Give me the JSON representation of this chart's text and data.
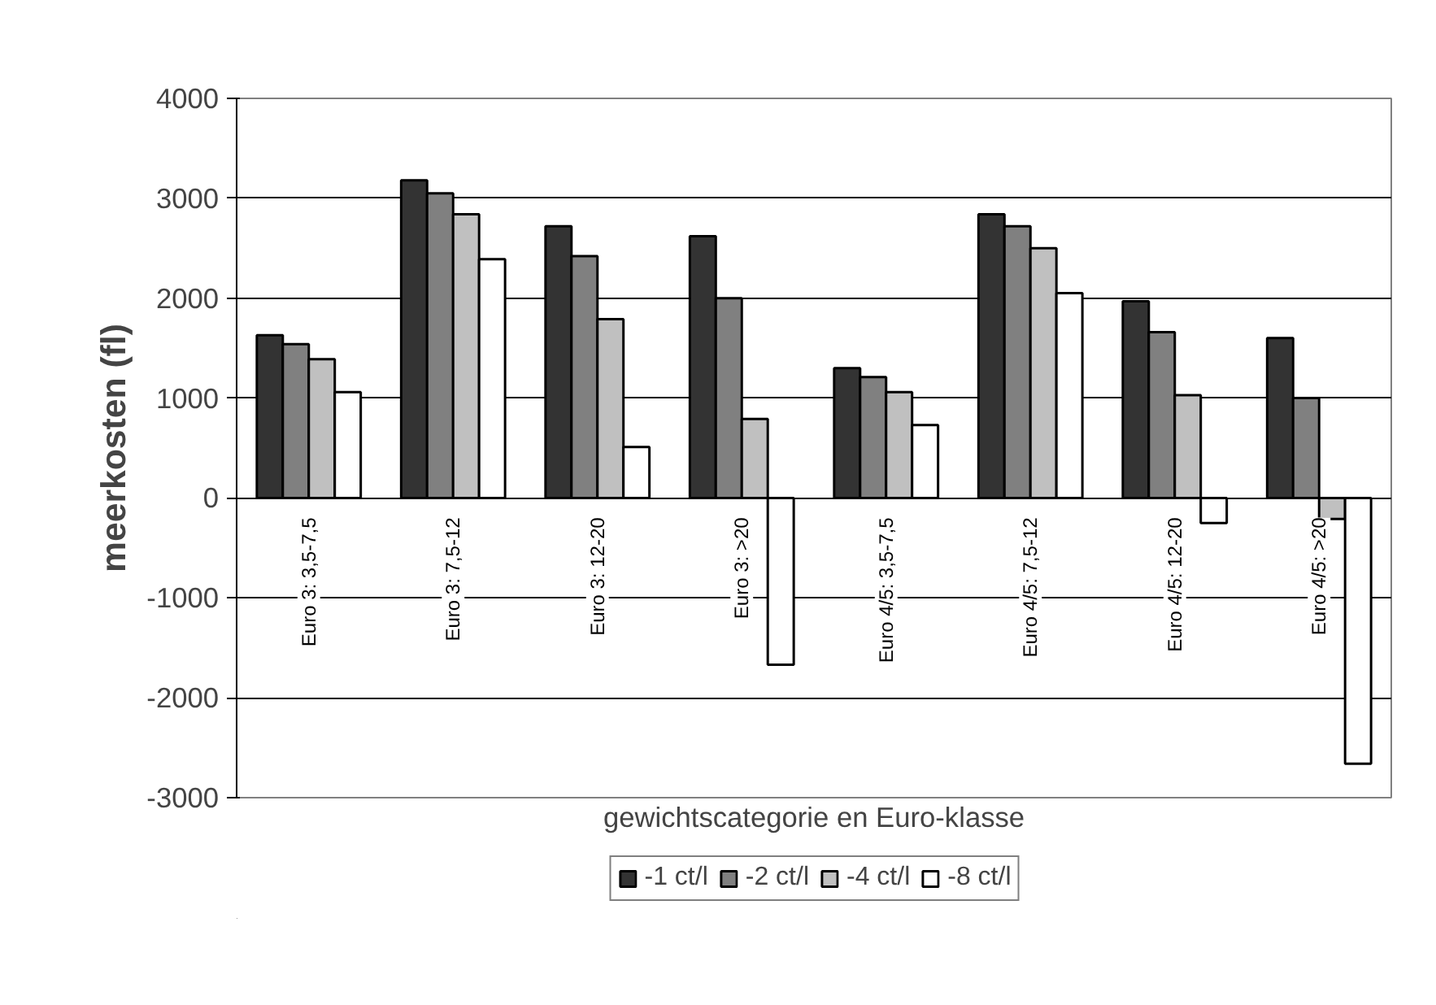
{
  "chart_data": {
    "type": "bar",
    "ylabel": "meerkosten (fl)",
    "xlabel": "gewichtscategorie en Euro-klasse",
    "categories": [
      "Euro 3: 3,5-7,5",
      "Euro 3: 7,5-12",
      "Euro 3: 12-20",
      "Euro 3: >20",
      "Euro 4/5: 3,5-7,5",
      "Euro 4/5: 7,5-12",
      "Euro 4/5: 12-20",
      "Euro 4/5: >20"
    ],
    "series": [
      {
        "name": "-1 ct/l",
        "color": "#333333",
        "values": [
          1630,
          3180,
          2720,
          2620,
          1300,
          2840,
          1970,
          1600
        ]
      },
      {
        "name": "-2 ct/l",
        "color": "#808080",
        "values": [
          1540,
          3050,
          2420,
          2000,
          1210,
          2720,
          1660,
          1000
        ]
      },
      {
        "name": "-4 ct/l",
        "color": "#c0c0c0",
        "values": [
          1390,
          2840,
          1790,
          790,
          1060,
          2500,
          1030,
          -210
        ]
      },
      {
        "name": "-8 ct/l",
        "color": "#ffffff",
        "values": [
          1060,
          2390,
          510,
          -1670,
          730,
          2050,
          -250,
          -2660
        ]
      }
    ],
    "ylim": [
      -3000,
      4000
    ],
    "yticks": [
      -3000,
      -2000,
      -1000,
      0,
      1000,
      2000,
      3000,
      4000
    ],
    "grid": "y",
    "legend": "bottom"
  }
}
